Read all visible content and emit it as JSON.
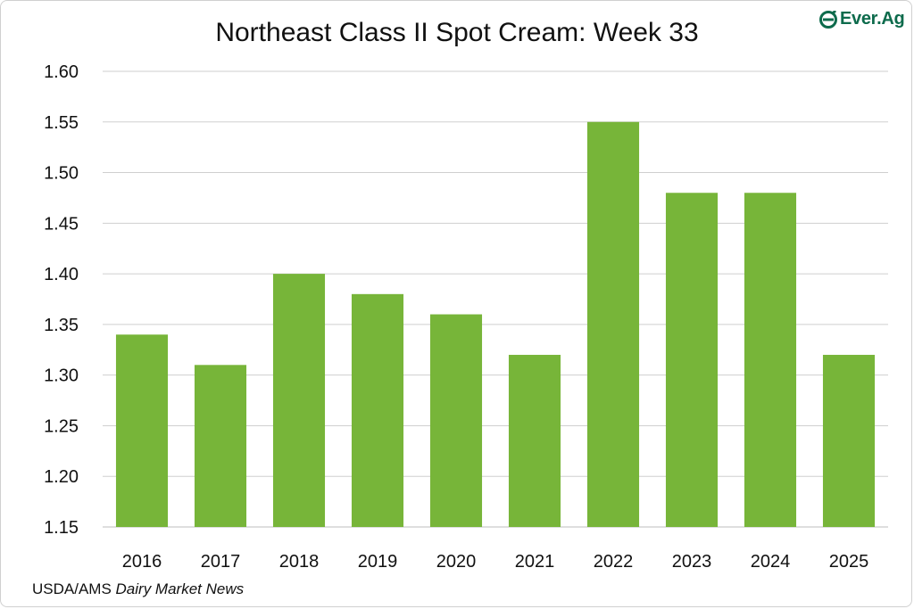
{
  "chart_data": {
    "type": "bar",
    "title": "Northeast Class II Spot Cream: Week 33",
    "xlabel": "",
    "ylabel": "",
    "categories": [
      "2016",
      "2017",
      "2018",
      "2019",
      "2020",
      "2021",
      "2022",
      "2023",
      "2024",
      "2025"
    ],
    "values": [
      1.34,
      1.31,
      1.4,
      1.38,
      1.36,
      1.32,
      1.55,
      1.48,
      1.48,
      1.32
    ],
    "ylim": [
      1.15,
      1.6
    ],
    "yticks": [
      "1.15",
      "1.20",
      "1.25",
      "1.30",
      "1.35",
      "1.40",
      "1.45",
      "1.50",
      "1.55",
      "1.60"
    ],
    "grid": true,
    "legend": "none",
    "bar_color": "#77b539",
    "grid_color": "#cfcfcf"
  },
  "logo": {
    "text": "Ever.Ag",
    "icon": "ever-ag-logo-icon",
    "color": "#0d6b4c"
  },
  "source": {
    "prefix": "USDA/AMS ",
    "name": "Dairy Market News"
  }
}
